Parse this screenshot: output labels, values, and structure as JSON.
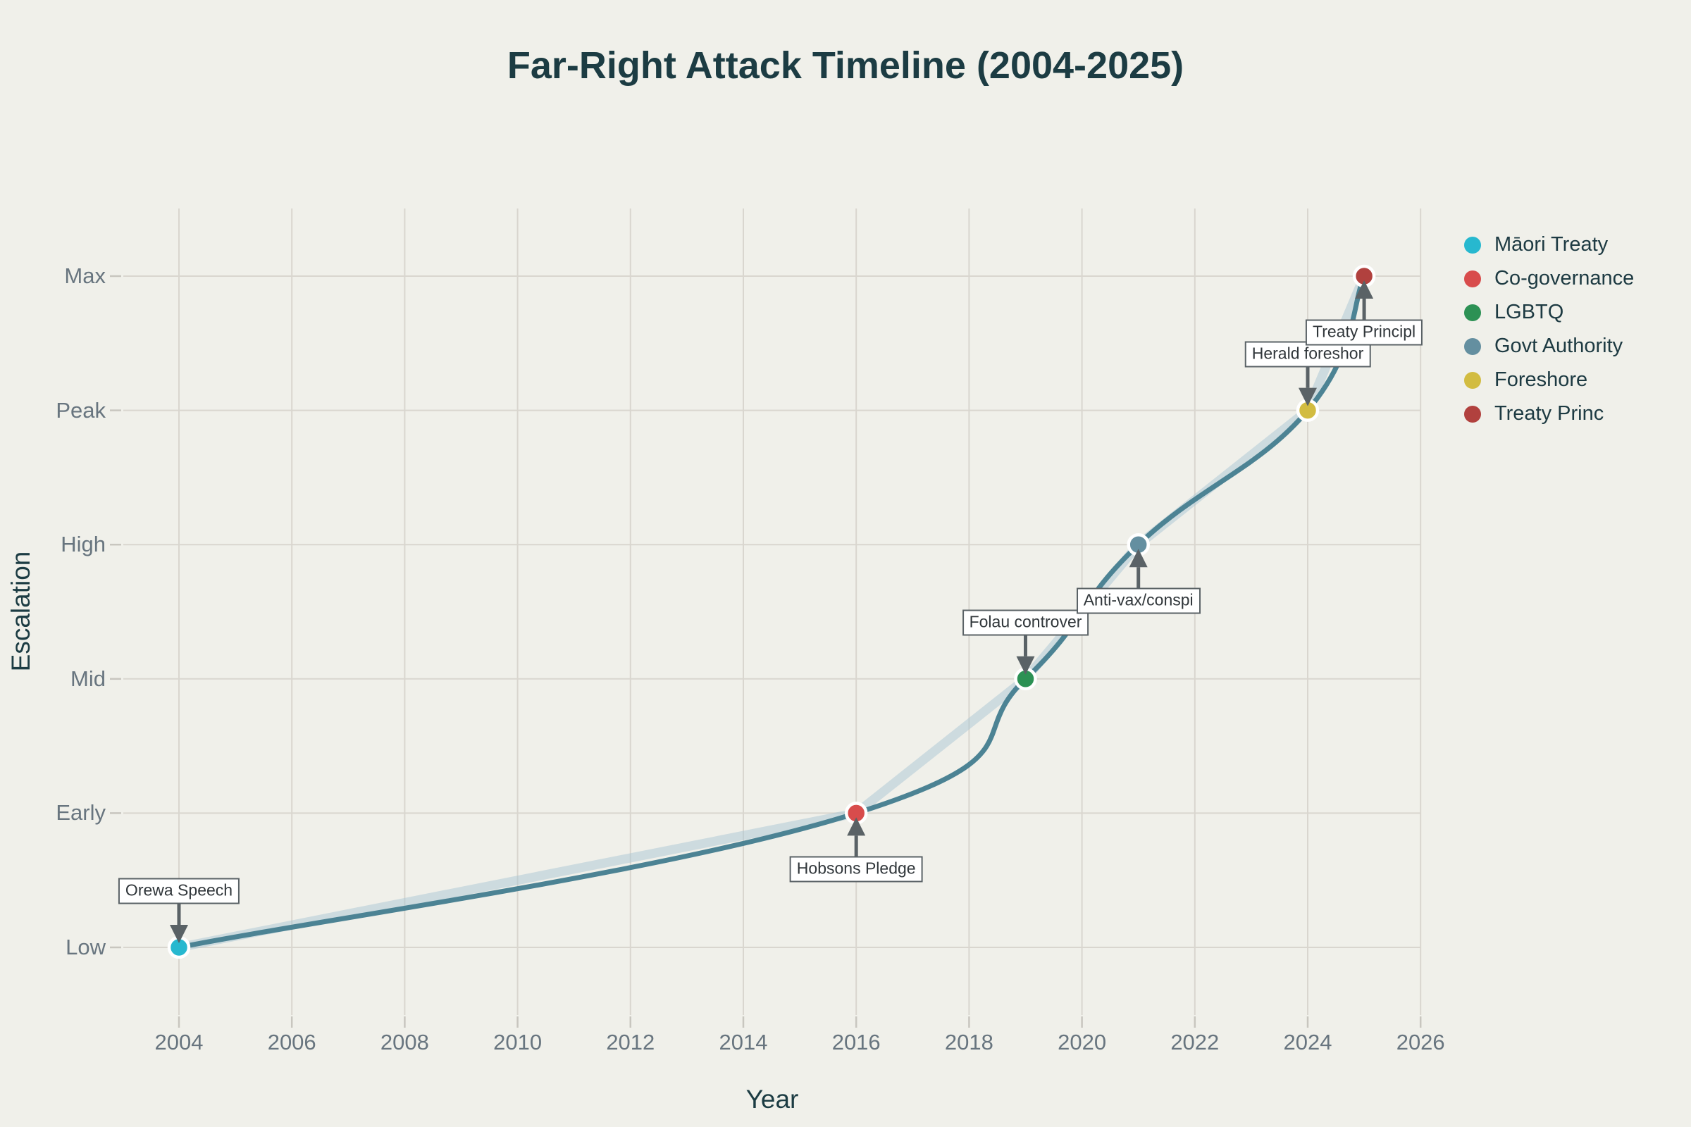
{
  "title": "Far-Right Attack Timeline (2004-2025)",
  "axes": {
    "x_label": "Year",
    "y_label": "Escalation",
    "x_ticks": [
      "2004",
      "2006",
      "2008",
      "2010",
      "2012",
      "2014",
      "2016",
      "2018",
      "2020",
      "2022",
      "2024",
      "2026"
    ],
    "y_categories": [
      "Low",
      "Early",
      "Mid",
      "High",
      "Peak",
      "Max"
    ]
  },
  "legend": {
    "items": [
      {
        "label": "Māori Treaty",
        "color": "#27b8cf"
      },
      {
        "label": "Co-governance",
        "color": "#d84c4c"
      },
      {
        "label": "LGBTQ",
        "color": "#2c9154"
      },
      {
        "label": "Govt Authority",
        "color": "#648fa0"
      },
      {
        "label": "Foreshore",
        "color": "#d2bc41"
      },
      {
        "label": "Treaty Princ",
        "color": "#b1413e"
      }
    ]
  },
  "annotations": [
    {
      "label": "Orewa Speech",
      "year": 2004,
      "level": "Low",
      "side": "above"
    },
    {
      "label": "Hobsons Pledge",
      "year": 2016,
      "level": "Early",
      "side": "below"
    },
    {
      "label": "Folau controver",
      "year": 2019,
      "level": "Mid",
      "side": "above"
    },
    {
      "label": "Anti-vax/conspi",
      "year": 2021,
      "level": "High",
      "side": "below"
    },
    {
      "label": "Herald foreshor",
      "year": 2024,
      "level": "Peak",
      "side": "above"
    },
    {
      "label": "Treaty Principl",
      "year": 2025,
      "level": "Max",
      "side": "below"
    }
  ],
  "chart_data": {
    "type": "scatter",
    "title": "Far-Right Attack Timeline (2004-2025)",
    "xlabel": "Year",
    "ylabel": "Escalation",
    "x_range": [
      2003,
      2026.3
    ],
    "x_tick_years": [
      2004,
      2006,
      2008,
      2010,
      2012,
      2014,
      2016,
      2018,
      2020,
      2022,
      2024,
      2026
    ],
    "y_categories": [
      "Low",
      "Early",
      "Mid",
      "High",
      "Peak",
      "Max"
    ],
    "grid": true,
    "legend_position": "right",
    "series": [
      {
        "name": "Māori Treaty",
        "color": "#27b8cf",
        "points": [
          {
            "x": 2004,
            "y": "Low",
            "annotation": "Orewa Speech"
          }
        ]
      },
      {
        "name": "Co-governance",
        "color": "#d84c4c",
        "points": [
          {
            "x": 2016,
            "y": "Early",
            "annotation": "Hobsons Pledge"
          }
        ]
      },
      {
        "name": "LGBTQ",
        "color": "#2c9154",
        "points": [
          {
            "x": 2019,
            "y": "Mid",
            "annotation": "Folau controver"
          }
        ]
      },
      {
        "name": "Govt Authority",
        "color": "#648fa0",
        "points": [
          {
            "x": 2021,
            "y": "High",
            "annotation": "Anti-vax/conspi"
          }
        ]
      },
      {
        "name": "Foreshore",
        "color": "#d2bc41",
        "points": [
          {
            "x": 2024,
            "y": "Peak",
            "annotation": "Herald foreshor"
          }
        ]
      },
      {
        "name": "Treaty Princ",
        "color": "#b1413e",
        "points": [
          {
            "x": 2025,
            "y": "Max",
            "annotation": "Treaty Principl"
          }
        ]
      }
    ],
    "connecting_line": {
      "points": [
        [
          2004,
          "Low"
        ],
        [
          2016,
          "Early"
        ],
        [
          2019,
          "Mid"
        ],
        [
          2021,
          "High"
        ],
        [
          2024,
          "Peak"
        ],
        [
          2025,
          "Max"
        ]
      ],
      "color": "#4c8394",
      "underlay_color": "#a9c6d4"
    }
  },
  "colors": {
    "background": "#f0f0ea",
    "grid": "#d9d6cf",
    "tick": "#c8c6bf",
    "axis_title": "#1c3c43",
    "tick_label": "#68757f",
    "line": "#4c8394",
    "line_underlay": "#a9c6d4",
    "arrow": "#5a6266",
    "annotation_border": "#5a6266",
    "annotation_bg": "#ffffff",
    "annotation_text": "#30363a"
  }
}
